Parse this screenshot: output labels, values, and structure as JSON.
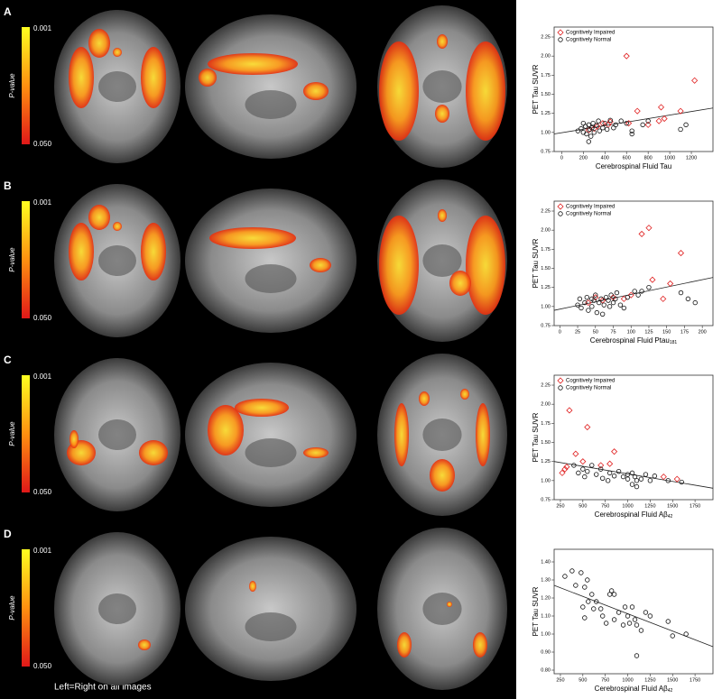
{
  "panels": [
    {
      "letter": "A",
      "colorbar_top": "0.001",
      "colorbar_bottom": "0.050",
      "colorbar_label": "P-value"
    },
    {
      "letter": "B",
      "colorbar_top": "0.001",
      "colorbar_bottom": "0.050",
      "colorbar_label": "P-value"
    },
    {
      "letter": "C",
      "colorbar_top": "0.001",
      "colorbar_bottom": "0.050",
      "colorbar_label": "P-value"
    },
    {
      "letter": "D",
      "colorbar_top": "0.001",
      "colorbar_bottom": "0.050",
      "colorbar_label": "P-value"
    }
  ],
  "footnote": "Left=Right on all images",
  "chart_data": [
    {
      "type": "scatter",
      "ylabel": "PET Tau SUVR",
      "xlabel": "Cerebrospinal Fluid Tau",
      "xlim": [
        -70,
        1400
      ],
      "xticks": [
        0,
        200,
        400,
        600,
        800,
        1000,
        1200
      ],
      "ylim": [
        0.75,
        2.38
      ],
      "yticks": [
        {
          "value": 0.75,
          "label": "0.75"
        },
        {
          "value": 1,
          "label": "1.00"
        },
        {
          "value": 1.25,
          "label": "1.25"
        },
        {
          "value": 1.5,
          "label": "1.50"
        },
        {
          "value": 1.75,
          "label": "1.75"
        },
        {
          "value": 2,
          "label": "2.00"
        },
        {
          "value": 2.25,
          "label": "2.25"
        }
      ],
      "legend": "upper left",
      "series": [
        {
          "name": "Cognitively Impaired",
          "color": "#e02020",
          "marker": "diamond",
          "x": [
            250,
            300,
            330,
            380,
            430,
            450,
            600,
            620,
            700,
            800,
            900,
            920,
            950,
            1100,
            1230
          ],
          "values": [
            1.03,
            1.05,
            1.08,
            1.12,
            1.1,
            1.14,
            2.0,
            1.12,
            1.28,
            1.1,
            1.15,
            1.33,
            1.18,
            1.28,
            1.68
          ]
        },
        {
          "name": "Cognitively Normal",
          "color": "#111111",
          "marker": "circle",
          "x": [
            150,
            180,
            200,
            200,
            220,
            230,
            250,
            250,
            260,
            270,
            280,
            290,
            300,
            320,
            340,
            350,
            380,
            400,
            420,
            450,
            480,
            500,
            550,
            600,
            650,
            650,
            750,
            800,
            1100,
            1150
          ],
          "values": [
            1.02,
            1.05,
            1.0,
            1.12,
            1.08,
            0.98,
            1.1,
            0.88,
            1.04,
            0.95,
            1.06,
            1.12,
            1.0,
            1.09,
            1.15,
            1.02,
            1.06,
            1.12,
            1.04,
            1.16,
            1.06,
            1.1,
            1.15,
            1.12,
            0.98,
            1.02,
            1.1,
            1.15,
            1.04,
            1.1
          ]
        }
      ],
      "trendline": {
        "x": [
          -70,
          1400
        ],
        "y": [
          0.98,
          1.32
        ]
      }
    },
    {
      "type": "scatter",
      "ylabel": "PET Tau SUVR",
      "xlabel": "Cerebrospinal Fluid Ptau",
      "xlabel_sub": "181",
      "xlim": [
        -8,
        215
      ],
      "xticks": [
        0,
        25,
        50,
        75,
        100,
        125,
        150,
        175,
        200
      ],
      "ylim": [
        0.75,
        2.38
      ],
      "yticks": [
        {
          "value": 0.75,
          "label": "0.75"
        },
        {
          "value": 1,
          "label": "1.00"
        },
        {
          "value": 1.25,
          "label": "1.25"
        },
        {
          "value": 1.5,
          "label": "1.50"
        },
        {
          "value": 1.75,
          "label": "1.75"
        },
        {
          "value": 2,
          "label": "2.00"
        },
        {
          "value": 2.25,
          "label": "2.25"
        }
      ],
      "legend": "upper left",
      "series": [
        {
          "name": "Cognitively Impaired",
          "color": "#e02020",
          "marker": "diamond",
          "x": [
            40,
            50,
            60,
            75,
            90,
            100,
            115,
            125,
            130,
            145,
            155,
            170
          ],
          "values": [
            1.05,
            1.12,
            1.08,
            1.12,
            1.1,
            1.15,
            1.95,
            2.03,
            1.35,
            1.1,
            1.3,
            1.7
          ]
        },
        {
          "name": "Cognitively Normal",
          "color": "#111111",
          "marker": "circle",
          "x": [
            25,
            28,
            30,
            35,
            38,
            40,
            45,
            45,
            48,
            50,
            52,
            55,
            58,
            60,
            62,
            65,
            68,
            70,
            72,
            75,
            78,
            80,
            85,
            90,
            95,
            105,
            110,
            115,
            125,
            170,
            180,
            190
          ],
          "values": [
            1.02,
            1.1,
            0.98,
            1.05,
            1.12,
            0.95,
            1.0,
            1.1,
            1.08,
            1.15,
            0.92,
            1.05,
            1.1,
            0.9,
            1.02,
            1.12,
            1.08,
            1.0,
            1.15,
            1.05,
            1.1,
            1.18,
            1.02,
            0.98,
            1.12,
            1.2,
            1.15,
            1.2,
            1.25,
            1.18,
            1.1,
            1.05
          ]
        }
      ],
      "trendline": {
        "x": [
          -8,
          215
        ],
        "y": [
          0.95,
          1.38
        ]
      }
    },
    {
      "type": "scatter",
      "ylabel": "PET Tau SUVR",
      "xlabel": "Cerebrospinal Fluid  Aβ",
      "xlabel_sub": "42",
      "xlim": [
        180,
        1950
      ],
      "xticks": [
        250,
        500,
        750,
        1000,
        1250,
        1500,
        1750
      ],
      "ylim": [
        0.75,
        2.38
      ],
      "yticks": [
        {
          "value": 0.75,
          "label": "0.75"
        },
        {
          "value": 1,
          "label": "1.00"
        },
        {
          "value": 1.25,
          "label": "1.25"
        },
        {
          "value": 1.5,
          "label": "1.50"
        },
        {
          "value": 1.75,
          "label": "1.75"
        },
        {
          "value": 2,
          "label": "2.00"
        },
        {
          "value": 2.25,
          "label": "2.25"
        }
      ],
      "legend": "upper left",
      "series": [
        {
          "name": "Cognitively Impaired",
          "color": "#e02020",
          "marker": "diamond",
          "x": [
            270,
            300,
            320,
            350,
            420,
            500,
            550,
            700,
            800,
            850,
            1400,
            1550
          ],
          "values": [
            1.1,
            1.15,
            1.18,
            1.92,
            1.35,
            1.25,
            1.7,
            1.2,
            1.22,
            1.38,
            1.05,
            1.02
          ]
        },
        {
          "name": "Cognitively Normal",
          "color": "#111111",
          "marker": "circle",
          "x": [
            400,
            450,
            500,
            520,
            550,
            600,
            650,
            700,
            720,
            780,
            800,
            850,
            900,
            950,
            1000,
            1000,
            1050,
            1050,
            1080,
            1100,
            1100,
            1150,
            1200,
            1250,
            1300,
            1450,
            1600
          ],
          "values": [
            1.2,
            1.1,
            1.15,
            1.05,
            1.12,
            1.2,
            1.08,
            1.15,
            1.03,
            1.0,
            1.1,
            1.06,
            1.12,
            1.05,
            1.08,
            1.02,
            1.1,
            0.95,
            1.05,
            1.0,
            0.92,
            1.02,
            1.08,
            1.0,
            1.06,
            1.0,
            0.98
          ]
        }
      ],
      "trendline": {
        "x": [
          180,
          1950
        ],
        "y": [
          1.25,
          0.9
        ]
      }
    },
    {
      "type": "scatter",
      "ylabel": "PET Tau SUVR",
      "xlabel": "Cerebrospinal Fluid Aβ",
      "xlabel_sub": "42",
      "xlim": [
        180,
        1950
      ],
      "xticks": [
        250,
        500,
        750,
        1000,
        1250,
        1500,
        1750
      ],
      "ylim": [
        0.78,
        1.47
      ],
      "yticks": [
        {
          "value": 0.8,
          "label": "0.80"
        },
        {
          "value": 0.9,
          "label": "0.90"
        },
        {
          "value": 1,
          "label": "1.00"
        },
        {
          "value": 1.1,
          "label": "1.10"
        },
        {
          "value": 1.2,
          "label": "1.20"
        },
        {
          "value": 1.3,
          "label": "1.30"
        },
        {
          "value": 1.4,
          "label": "1.40"
        }
      ],
      "series": [
        {
          "color": "#111111",
          "marker": "circle",
          "x": [
            300,
            380,
            420,
            480,
            500,
            520,
            520,
            550,
            560,
            600,
            620,
            650,
            700,
            720,
            760,
            800,
            820,
            850,
            850,
            900,
            950,
            970,
            1000,
            1020,
            1050,
            1080,
            1100,
            1100,
            1150,
            1200,
            1250,
            1450,
            1500,
            1650
          ],
          "values": [
            1.32,
            1.35,
            1.27,
            1.34,
            1.15,
            1.09,
            1.26,
            1.3,
            1.18,
            1.22,
            1.14,
            1.18,
            1.14,
            1.1,
            1.06,
            1.22,
            1.24,
            1.08,
            1.22,
            1.12,
            1.05,
            1.15,
            1.1,
            1.06,
            1.15,
            1.08,
            1.05,
            0.88,
            1.02,
            1.12,
            1.1,
            1.07,
            0.99,
            1.0
          ]
        }
      ],
      "trendline": {
        "x": [
          180,
          1950
        ],
        "y": [
          1.27,
          0.93
        ]
      }
    }
  ]
}
